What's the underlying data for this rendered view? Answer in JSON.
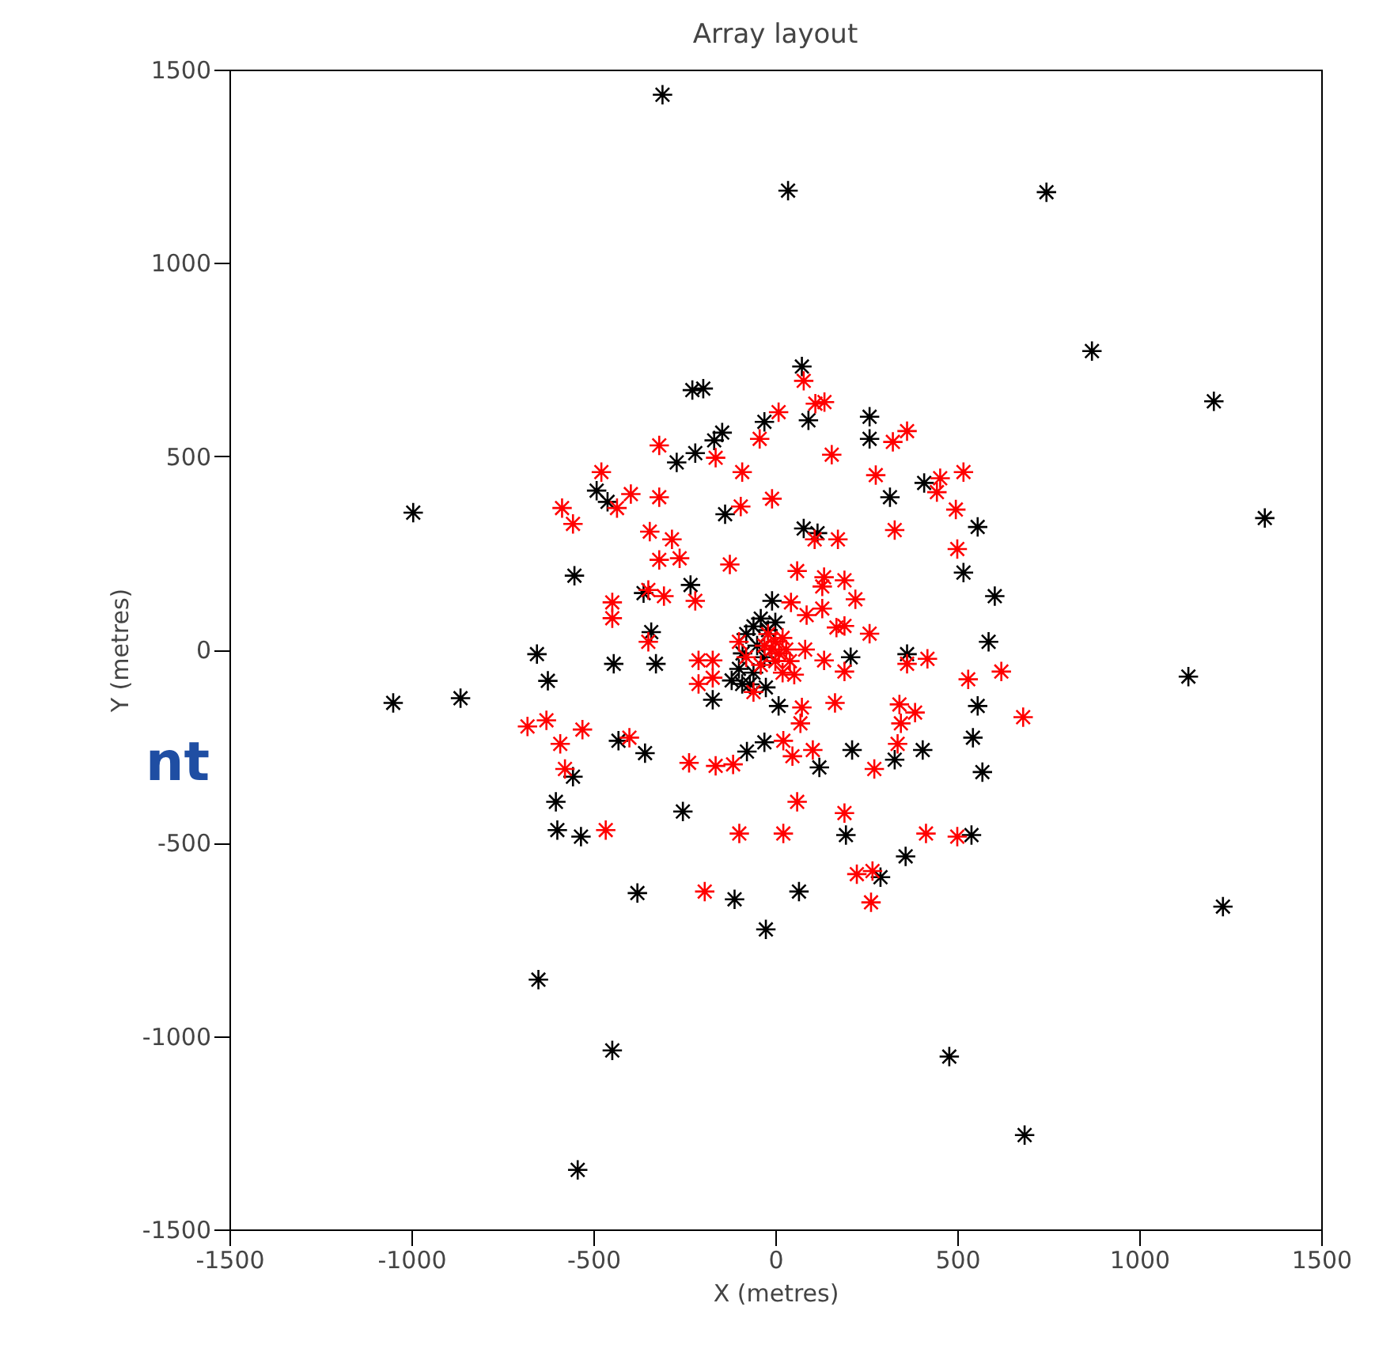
{
  "chart_data": {
    "type": "scatter",
    "title": "Array layout",
    "xlabel": "X (metres)",
    "ylabel": "Y (metres)",
    "annotations": [
      "nt"
    ],
    "xlim": [
      -1500,
      1500
    ],
    "xticks": [
      -1500,
      -1000,
      -500,
      0,
      500,
      1000,
      1500
    ],
    "ylim": [
      -1500,
      1500
    ],
    "yticks": [
      -1500,
      -1000,
      -500,
      0,
      500,
      1000,
      1500
    ],
    "grid": false,
    "legend": false,
    "marker": "cross",
    "series": [
      {
        "color": "#000000",
        "x": [
          -310,
          35,
          745,
          870,
          1205,
          1345,
          -995,
          -1050,
          -865,
          1135,
          1230,
          685,
          478,
          -26,
          -651,
          -448,
          -543,
          73,
          -228,
          -198,
          259,
          259,
          91,
          -30,
          -146,
          -168,
          -220,
          -271,
          -491,
          -461,
          315,
          409,
          556,
          -138,
          78,
          116,
          517,
          603,
          -552,
          -362,
          -233,
          -9,
          -341,
          -655,
          -444,
          -328,
          -625,
          586,
          362,
          207,
          -60,
          -40,
          -80,
          -20,
          -50,
          -90,
          -30,
          0,
          -100,
          -60,
          -120,
          -70,
          -431,
          -358,
          -556,
          -603,
          -599,
          -534,
          -379,
          -254,
          -172,
          556,
          543,
          569,
          328,
          405,
          211,
          121,
          -30,
          -78,
          9,
          -91,
          -26,
          194,
          539,
          358,
          289,
          -112,
          65
        ],
        "values": [
          1435,
          1187,
          1183,
          772,
          642,
          340,
          354,
          -138,
          -126,
          -70,
          -665,
          -1256,
          -1053,
          -724,
          -854,
          -1037,
          -1346,
          732,
          671,
          675,
          602,
          545,
          593,
          589,
          561,
          541,
          508,
          484,
          411,
          382,
          394,
          431,
          317,
          350,
          313,
          301,
          199,
          138,
          191,
          146,
          167,
          126,
          45,
          -12,
          -37,
          -37,
          -81,
          20,
          -12,
          -20,
          60,
          80,
          40,
          50,
          10,
          -10,
          -20,
          70,
          -50,
          -60,
          -80,
          -90,
          -236,
          -268,
          -329,
          -394,
          -467,
          -484,
          -630,
          -419,
          -130,
          -146,
          -228,
          -317,
          -285,
          -260,
          -260,
          -305,
          -240,
          -264,
          -146,
          -89,
          -98,
          -480,
          -480,
          -535,
          -589,
          -646,
          -626
        ]
      },
      {
        "color": "#ff0000",
        "x": [
          78,
          110,
          135,
          9,
          -43,
          362,
          323,
          -319,
          -164,
          155,
          -478,
          -397,
          -435,
          -319,
          -586,
          -556,
          -345,
          -284,
          -319,
          -263,
          -349,
          -306,
          -220,
          -448,
          -448,
          -349,
          -91,
          276,
          453,
          517,
          444,
          496,
          -9,
          -95,
          328,
          108,
          172,
          500,
          -125,
          60,
          134,
          129,
          190,
          220,
          43,
          86,
          129,
          168,
          190,
          259,
          621,
          530,
          418,
          362,
          134,
          190,
          82,
          52,
          -20,
          0,
          10,
          -10,
          20,
          30,
          -30,
          0,
          -40,
          40,
          20,
          -80,
          -60,
          -100,
          -681,
          -629,
          -530,
          -591,
          -401,
          -578,
          -466,
          -194,
          -237,
          -164,
          -211,
          -172,
          -172,
          -211,
          681,
          384,
          341,
          345,
          336,
          272,
          103,
          47,
          22,
          -116,
          73,
          69,
          164,
          60,
          190,
          -99,
          22,
          414,
          500,
          224,
          267,
          263
        ],
        "values": [
          695,
          636,
          640,
          614,
          545,
          565,
          537,
          528,
          496,
          504,
          459,
          402,
          366,
          394,
          366,
          325,
          305,
          285,
          232,
          236,
          20,
          138,
          126,
          122,
          81,
          154,
          459,
          451,
          443,
          459,
          407,
          362,
          390,
          370,
          309,
          285,
          285,
          260,
          220,
          203,
          187,
          163,
          179,
          130,
          122,
          89,
          106,
          57,
          61,
          41,
          -57,
          -77,
          -24,
          -37,
          -28,
          -57,
          0,
          -65,
          40,
          20,
          -10,
          0,
          30,
          0,
          10,
          -30,
          -40,
          -30,
          -60,
          -20,
          -110,
          20,
          -199,
          -183,
          -207,
          -244,
          -228,
          -309,
          -467,
          -626,
          -293,
          -301,
          -89,
          -28,
          -73,
          -28,
          -175,
          -163,
          -142,
          -191,
          -244,
          -309,
          -260,
          -276,
          -236,
          -297,
          -150,
          -191,
          -138,
          -394,
          -423,
          -476,
          -476,
          -476,
          -484,
          -581,
          -573,
          -654
        ]
      }
    ]
  }
}
